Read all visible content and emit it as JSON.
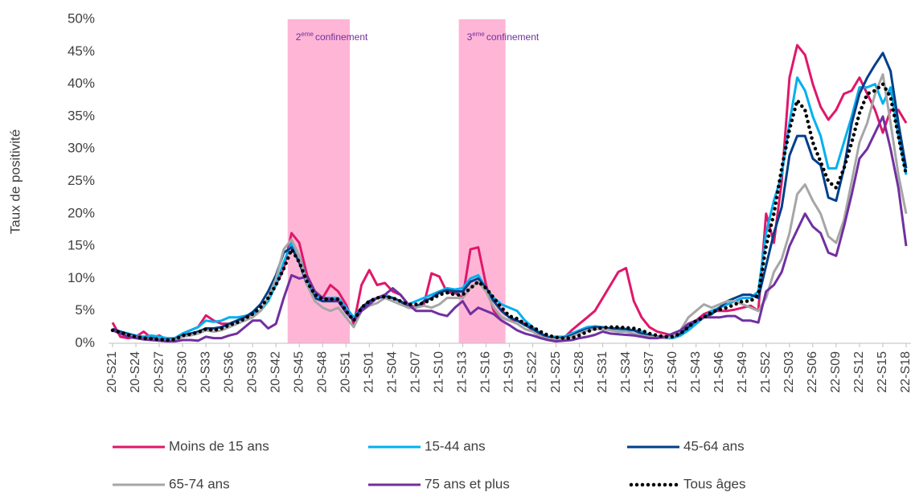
{
  "chart_data": {
    "type": "line",
    "y_label": "Taux de positivité",
    "categories": [
      "20-S21",
      null,
      null,
      "20-S24",
      null,
      null,
      "20-S27",
      null,
      null,
      "20-S30",
      null,
      null,
      "20-S33",
      null,
      null,
      "20-S36",
      null,
      null,
      "20-S39",
      null,
      null,
      "20-S42",
      null,
      null,
      "20-S45",
      null,
      null,
      "20-S48",
      null,
      null,
      "20-S51",
      null,
      null,
      "21-S01",
      null,
      null,
      "21-S04",
      null,
      null,
      "21-S07",
      null,
      null,
      "21-S10",
      null,
      null,
      "21-S13",
      null,
      null,
      "21-S16",
      null,
      null,
      "21-S19",
      null,
      null,
      "21-S22",
      null,
      null,
      "21-S25",
      null,
      null,
      "21-S28",
      null,
      null,
      "21-S31",
      null,
      null,
      "21-S34",
      null,
      null,
      "21-S37",
      null,
      null,
      "21-S40",
      null,
      null,
      "21-S43",
      null,
      null,
      "21-S46",
      null,
      null,
      "21-S49",
      null,
      null,
      "21-S52",
      null,
      null,
      "22-S03",
      null,
      null,
      "22-S06",
      null,
      null,
      "22-S09",
      null,
      null,
      "22-S12",
      null,
      null,
      "22-S15",
      null,
      null,
      "22-S18"
    ],
    "ylim": [
      0,
      50
    ],
    "yticks": [
      {
        "value": 0,
        "label": "0%"
      },
      {
        "value": 5,
        "label": "5%"
      },
      {
        "value": 10,
        "label": "10%"
      },
      {
        "value": 15,
        "label": "15%"
      },
      {
        "value": 20,
        "label": "20%"
      },
      {
        "value": 25,
        "label": "25%"
      },
      {
        "value": 30,
        "label": "30%"
      },
      {
        "value": 35,
        "label": "35%"
      },
      {
        "value": 40,
        "label": "40%"
      },
      {
        "value": 45,
        "label": "45%"
      },
      {
        "value": 50,
        "label": "50%"
      }
    ],
    "grid": false,
    "bands": [
      {
        "label": "2",
        "label_sup": "eme",
        "label_rest": "confinement",
        "start": 22.5,
        "end": 30.5,
        "color": "#ffb6d6"
      },
      {
        "label": "3",
        "label_sup": "eme",
        "label_rest": "confinement",
        "start": 44.5,
        "end": 50.5,
        "color": "#ffb6d6"
      }
    ],
    "series": [
      {
        "name": "Moins de 15 ans",
        "color": "#e0176a",
        "values": [
          3.2,
          1.0,
          0.8,
          1.0,
          1.8,
          0.8,
          1.2,
          0.5,
          0.6,
          1.5,
          2.0,
          2.5,
          4.3,
          3.5,
          3.0,
          3.0,
          3.5,
          4.0,
          4.5,
          5.0,
          7.0,
          9.0,
          11.5,
          17.0,
          15.5,
          10.5,
          8.0,
          7.0,
          9.0,
          8.0,
          6.0,
          3.0,
          9.0,
          11.3,
          9.0,
          9.3,
          8.0,
          7.5,
          6.0,
          5.5,
          6.0,
          10.8,
          10.3,
          7.8,
          7.8,
          7.0,
          14.5,
          14.8,
          9.0,
          5.0,
          4.0,
          3.5,
          3.5,
          3.0,
          2.0,
          1.0,
          0.8,
          0.8,
          0.8,
          2.0,
          3.0,
          4.0,
          5.0,
          7.0,
          9.0,
          11.0,
          11.6,
          6.5,
          4.0,
          2.5,
          1.8,
          1.5,
          1.2,
          2.0,
          3.0,
          3.5,
          4.5,
          5.0,
          5.0,
          5.0,
          5.2,
          5.5,
          5.8,
          5.0,
          20.0,
          15.5,
          25,
          41,
          46,
          44.5,
          40,
          36.5,
          34.5,
          36,
          38.5,
          39,
          41,
          38.5,
          36,
          32.5,
          36,
          36,
          34
        ]
      },
      {
        "name": "15-44 ans",
        "color": "#00b0f0",
        "values": [
          2.0,
          1.8,
          1.5,
          1.2,
          1.0,
          1.2,
          1.0,
          0.8,
          0.8,
          1.5,
          2.0,
          2.5,
          3.5,
          3.3,
          3.5,
          4.0,
          4.0,
          4.2,
          4.5,
          5.0,
          6.5,
          9.0,
          12.5,
          15.5,
          13.5,
          9.5,
          7.5,
          7.0,
          7.0,
          7.0,
          5.5,
          4.0,
          5.5,
          6.5,
          7.0,
          7.5,
          7.0,
          6.5,
          6.0,
          6.5,
          7.0,
          7.5,
          8.0,
          8.5,
          8.3,
          8.5,
          10.0,
          10.5,
          8.5,
          7.0,
          6.0,
          5.5,
          5.0,
          3.5,
          2.5,
          1.5,
          1.0,
          1.0,
          1.0,
          1.5,
          2.0,
          2.5,
          2.6,
          2.5,
          2.3,
          2.2,
          2.0,
          2.0,
          1.8,
          1.3,
          1.0,
          0.8,
          0.8,
          1.2,
          2.0,
          3.0,
          4.0,
          5.0,
          5.5,
          6.0,
          6.5,
          7.0,
          7.0,
          8.0,
          17,
          22,
          26,
          34,
          41,
          39,
          35,
          32,
          27,
          27,
          31,
          35,
          39.5,
          39.5,
          40,
          37,
          39.5,
          32,
          26
        ]
      },
      {
        "name": "45-64 ans",
        "color": "#003f8a",
        "values": [
          2.2,
          1.8,
          1.4,
          1.0,
          0.8,
          0.7,
          0.6,
          0.5,
          0.6,
          1.2,
          1.5,
          1.8,
          2.3,
          2.3,
          2.5,
          3.0,
          3.5,
          4.0,
          4.8,
          6.0,
          8.0,
          10.5,
          14.0,
          14.8,
          12.5,
          9.0,
          7.0,
          6.5,
          6.5,
          6.5,
          4.8,
          3.5,
          5.5,
          6.5,
          7.0,
          7.2,
          7.0,
          6.5,
          5.5,
          5.5,
          6.5,
          7.0,
          7.8,
          8.2,
          8.0,
          8.0,
          9.5,
          10.0,
          8.5,
          6.5,
          5.0,
          4.0,
          3.5,
          2.8,
          2.2,
          1.5,
          0.9,
          0.8,
          0.8,
          1.2,
          1.8,
          2.2,
          2.5,
          2.4,
          2.3,
          2.3,
          2.2,
          2.0,
          1.5,
          1.2,
          1.0,
          1.0,
          1.0,
          1.5,
          2.5,
          3.5,
          4.0,
          4.5,
          5.5,
          6.5,
          7.0,
          7.5,
          7.5,
          7.0,
          12,
          17,
          21,
          29,
          32,
          32,
          28.5,
          27.5,
          22.5,
          22,
          27,
          34,
          38.5,
          41,
          43,
          44.8,
          42,
          34,
          27
        ]
      },
      {
        "name": "65-74 ans",
        "color": "#a6a6a6",
        "values": [
          2.0,
          1.5,
          1.2,
          0.9,
          0.7,
          0.6,
          0.5,
          0.4,
          0.5,
          1.0,
          1.2,
          1.5,
          2.0,
          1.8,
          2.0,
          2.5,
          3.0,
          3.5,
          4.0,
          5.0,
          7.0,
          10.0,
          14.5,
          16.0,
          13.5,
          9.0,
          6.5,
          5.5,
          5.0,
          5.5,
          4.0,
          2.5,
          5.0,
          5.8,
          6.2,
          7.0,
          6.5,
          6.0,
          5.5,
          5.5,
          5.8,
          5.5,
          6.0,
          7.0,
          7.0,
          7.0,
          8.5,
          9.5,
          8.0,
          5.5,
          4.0,
          3.5,
          3.0,
          2.2,
          1.8,
          1.0,
          0.7,
          0.6,
          0.7,
          1.0,
          1.5,
          2.0,
          2.2,
          2.2,
          2.0,
          1.8,
          1.8,
          1.5,
          1.2,
          1.0,
          0.9,
          0.8,
          1.0,
          2.0,
          4.0,
          5.0,
          6.0,
          5.5,
          6.0,
          6.5,
          6.5,
          6.0,
          5.5,
          5.0,
          7.0,
          11,
          13,
          17,
          23,
          24.5,
          22,
          20,
          16.5,
          15.5,
          19,
          25,
          31,
          34,
          38.5,
          41.5,
          34,
          26,
          20
        ]
      },
      {
        "name": "75 ans et plus",
        "color": "#7030a0",
        "values": [
          2.0,
          1.5,
          1.0,
          0.8,
          0.6,
          0.5,
          0.4,
          0.3,
          0.3,
          0.5,
          0.5,
          0.4,
          1.0,
          0.8,
          0.8,
          1.2,
          1.5,
          2.5,
          3.5,
          3.5,
          2.3,
          3.0,
          7.0,
          10.5,
          10.0,
          10.3,
          8.0,
          7.0,
          6.8,
          6.5,
          5.0,
          3.5,
          5.0,
          6.0,
          7.0,
          7.5,
          8.5,
          7.5,
          6.0,
          5.0,
          5.0,
          5.0,
          4.5,
          4.2,
          5.5,
          6.5,
          4.5,
          5.5,
          5.0,
          4.5,
          3.5,
          2.8,
          2.0,
          1.5,
          1.2,
          0.8,
          0.5,
          0.3,
          0.4,
          0.5,
          0.8,
          1.0,
          1.3,
          1.8,
          1.5,
          1.4,
          1.3,
          1.2,
          1.0,
          0.8,
          0.8,
          1.0,
          1.5,
          2.0,
          3.0,
          3.5,
          4.0,
          4.0,
          4.0,
          4.2,
          4.2,
          3.5,
          3.5,
          3.2,
          8.0,
          9.0,
          11,
          15,
          17.5,
          20,
          18,
          17,
          14,
          13.5,
          18,
          23,
          28.5,
          30,
          32.5,
          35,
          30,
          24,
          15
        ]
      },
      {
        "name": "Tous âges",
        "color": "#000000",
        "dash": "dotted",
        "values": [
          2.0,
          1.7,
          1.3,
          1.0,
          0.8,
          0.7,
          0.6,
          0.5,
          0.6,
          1.2,
          1.4,
          1.7,
          2.2,
          2.0,
          2.3,
          2.8,
          3.2,
          3.8,
          4.5,
          5.5,
          7.0,
          9.0,
          11.5,
          14.5,
          12.5,
          9.5,
          7.5,
          6.8,
          6.8,
          6.8,
          5.0,
          3.5,
          5.5,
          6.5,
          7.0,
          7.2,
          7.0,
          6.5,
          6.0,
          6.0,
          6.2,
          6.8,
          7.5,
          7.8,
          7.5,
          7.5,
          8.5,
          9.5,
          8.5,
          7.0,
          5.5,
          4.2,
          3.8,
          3.0,
          2.5,
          1.8,
          1.2,
          0.9,
          0.8,
          0.8,
          1.2,
          1.8,
          2.2,
          2.4,
          2.5,
          2.5,
          2.4,
          2.3,
          2.0,
          1.5,
          1.2,
          1.0,
          1.0,
          1.5,
          2.5,
          3.5,
          4.0,
          4.8,
          5.2,
          5.5,
          6.0,
          6.5,
          6.5,
          7.5,
          15,
          20,
          27,
          33,
          37.5,
          36,
          31,
          28,
          25,
          24,
          27,
          31,
          35.5,
          38.5,
          39,
          40,
          38,
          32,
          26
        ]
      }
    ]
  }
}
